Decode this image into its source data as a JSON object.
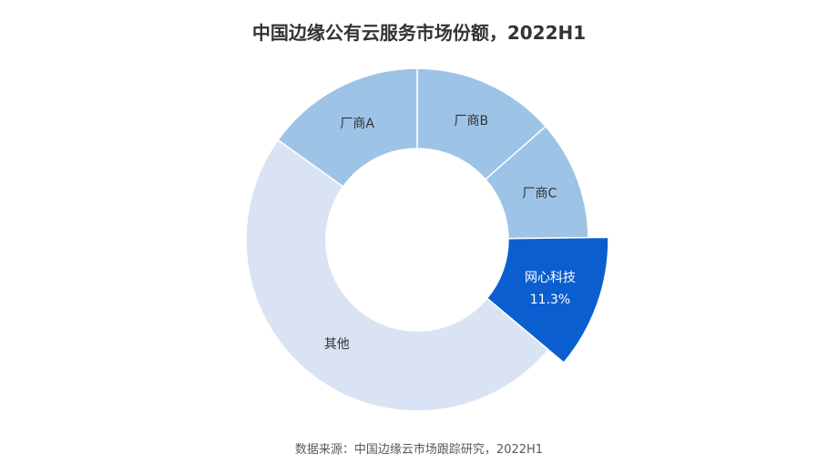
{
  "chart_data": {
    "type": "pie",
    "title": "中国边缘公有云服务市场份额，2022H1",
    "source": "数据来源：中国边缘云市场跟踪研究，2022H1",
    "slices": [
      {
        "label": "厂商B",
        "value": 13.5,
        "color": "#9dc3e6",
        "label_color": "#333333"
      },
      {
        "label": "厂商C",
        "value": 11.3,
        "color": "#9dc3e6",
        "label_color": "#333333"
      },
      {
        "label": "网心科技",
        "value": 11.3,
        "value_label": "11.3%",
        "color": "#0b5ecf",
        "label_color": "#ffffff",
        "highlighted": true
      },
      {
        "label": "其他",
        "value": 48.8,
        "color": "#dae3f3",
        "label_color": "#333333"
      },
      {
        "label": "厂商A",
        "value": 15.1,
        "color": "#9dc3e6",
        "label_color": "#333333"
      }
    ],
    "donut": true,
    "start": "top",
    "direction": "clockwise"
  }
}
